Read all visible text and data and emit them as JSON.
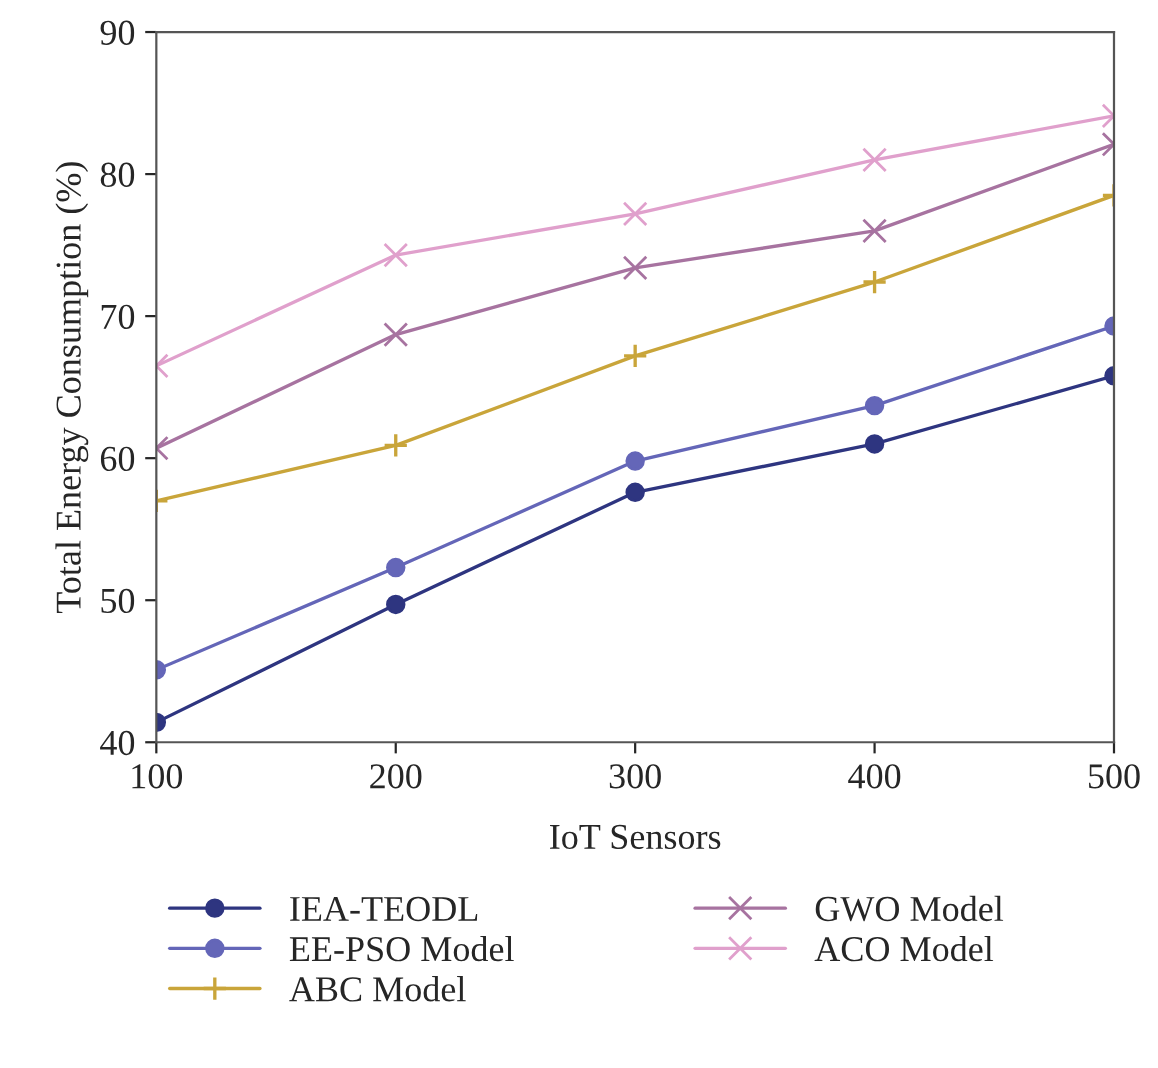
{
  "chart_data": {
    "type": "line",
    "xlabel": "IoT Sensors",
    "ylabel": "Total Energy Consumption (%)",
    "x": [
      100,
      200,
      300,
      400,
      500
    ],
    "series": [
      {
        "name": "IEA-TEODL",
        "color": "#2e3580",
        "marker": "circle",
        "values": [
          41.4,
          49.7,
          57.6,
          61.0,
          65.8
        ]
      },
      {
        "name": "EE-PSO Model",
        "color": "#6466b8",
        "marker": "circle",
        "values": [
          45.1,
          52.3,
          59.8,
          63.7,
          69.3
        ]
      },
      {
        "name": "ABC Model",
        "color": "#c9a53a",
        "marker": "plus",
        "values": [
          57.0,
          60.9,
          67.2,
          72.4,
          78.5
        ]
      },
      {
        "name": "GWO Model",
        "color": "#a773a0",
        "marker": "cross",
        "values": [
          60.7,
          68.7,
          73.4,
          76.0,
          82.1
        ]
      },
      {
        "name": "ACO Model",
        "color": "#e0a0cc",
        "marker": "cross",
        "values": [
          66.5,
          74.3,
          77.2,
          81.0,
          84.1
        ]
      }
    ],
    "xlim": [
      100,
      500
    ],
    "xticks": [
      100,
      200,
      300,
      400,
      500
    ],
    "ylim": [
      40,
      90
    ],
    "yticks": [
      40,
      50,
      60,
      70,
      80,
      90
    ],
    "grid": false,
    "legend": "bottom",
    "line_style": "solid"
  }
}
